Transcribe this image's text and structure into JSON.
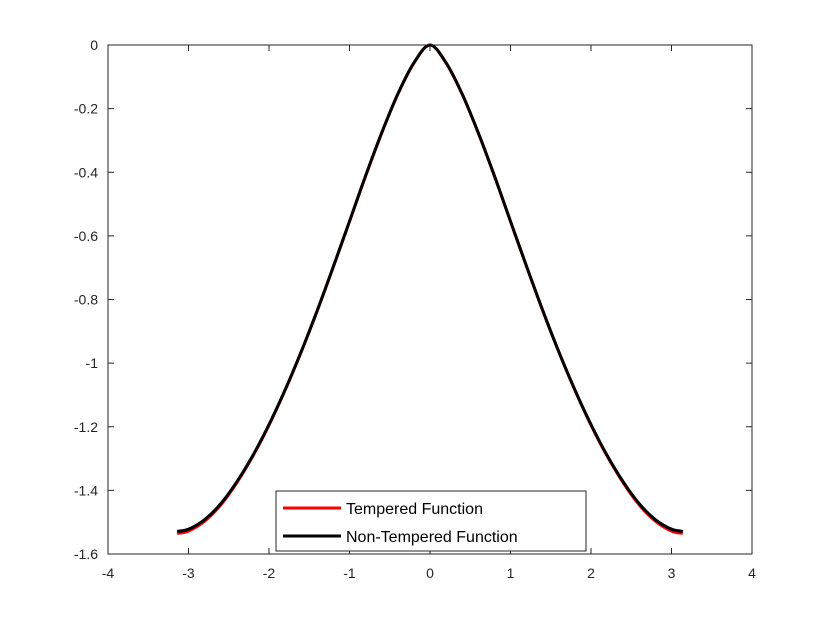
{
  "chart_data": {
    "type": "line",
    "title": "",
    "xlabel": "",
    "ylabel": "",
    "xlim": [
      -4,
      4
    ],
    "ylim": [
      -1.6,
      0
    ],
    "xticks": [
      -4,
      -3,
      -2,
      -1,
      0,
      1,
      2,
      3,
      4
    ],
    "xtick_labels": [
      "-4",
      "-3",
      "-2",
      "-1",
      "0",
      "1",
      "2",
      "3",
      "4"
    ],
    "yticks": [
      0,
      -0.2,
      -0.4,
      -0.6,
      -0.8,
      -1,
      -1.2,
      -1.4,
      -1.6
    ],
    "ytick_labels": [
      "0",
      "-0.2",
      "-0.4",
      "-0.6",
      "-0.8",
      "-1",
      "-1.2",
      "-1.4",
      "-1.6"
    ],
    "grid": false,
    "legend_position": "bottom-center",
    "x": [
      -3.1416,
      -3.0,
      -2.8,
      -2.6,
      -2.4,
      -2.2,
      -2.0,
      -1.8,
      -1.6,
      -1.4,
      -1.2,
      -1.0,
      -0.8,
      -0.6,
      -0.4,
      -0.2,
      0.0,
      0.2,
      0.4,
      0.6,
      0.8,
      1.0,
      1.2,
      1.4,
      1.6,
      1.8,
      2.0,
      2.2,
      2.4,
      2.6,
      2.8,
      3.0,
      3.1416
    ],
    "series": [
      {
        "name": "Tempered Function",
        "color": "#ff0000",
        "values": [
          -1.535,
          -1.528,
          -1.497,
          -1.446,
          -1.376,
          -1.292,
          -1.195,
          -1.085,
          -0.965,
          -0.835,
          -0.697,
          -0.555,
          -0.412,
          -0.277,
          -0.155,
          -0.057,
          0.0,
          -0.057,
          -0.155,
          -0.277,
          -0.412,
          -0.555,
          -0.697,
          -0.835,
          -0.965,
          -1.085,
          -1.195,
          -1.292,
          -1.376,
          -1.446,
          -1.497,
          -1.528,
          -1.535
        ]
      },
      {
        "name": "Non-Tempered Function",
        "color": "#000000",
        "values": [
          -1.529,
          -1.522,
          -1.492,
          -1.442,
          -1.373,
          -1.29,
          -1.193,
          -1.084,
          -0.964,
          -0.834,
          -0.696,
          -0.554,
          -0.411,
          -0.276,
          -0.154,
          -0.056,
          0.0,
          -0.056,
          -0.154,
          -0.276,
          -0.411,
          -0.554,
          -0.696,
          -0.834,
          -0.964,
          -1.084,
          -1.193,
          -1.29,
          -1.373,
          -1.442,
          -1.492,
          -1.522,
          -1.529
        ]
      }
    ]
  }
}
